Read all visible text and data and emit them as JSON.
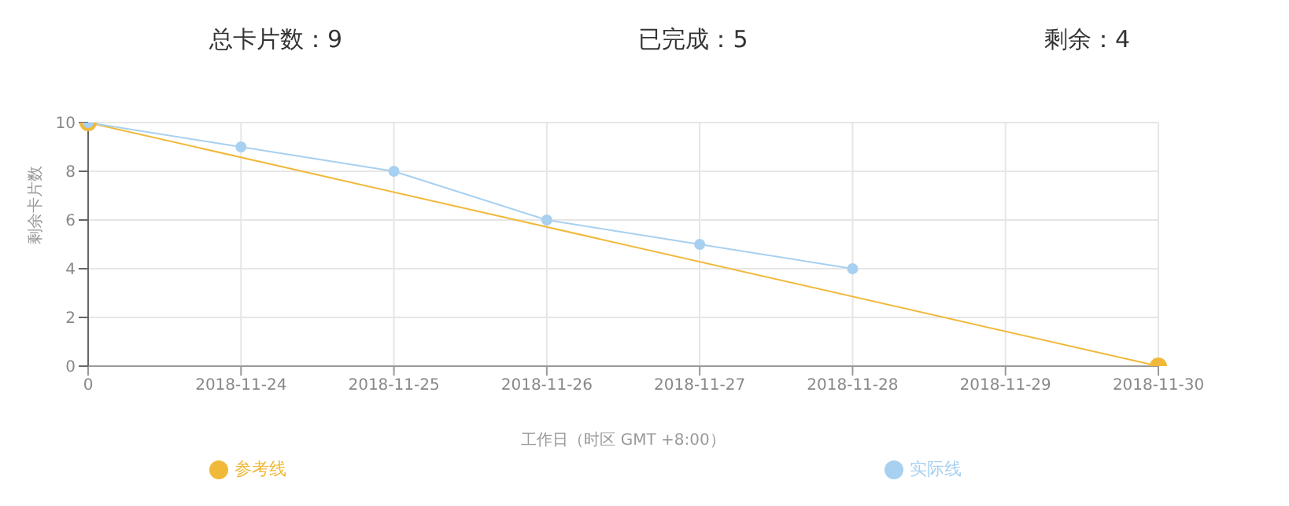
{
  "chart_data": {
    "type": "line",
    "xlabel": "工作日（时区 GMT +8:00）",
    "ylabel": "剩余卡片数",
    "annotations": [
      "总卡片数：9",
      "已完成：5",
      "剩余：4"
    ],
    "categories": [
      "0",
      "2018-11-24",
      "2018-11-25",
      "2018-11-26",
      "2018-11-27",
      "2018-11-28",
      "2018-11-29",
      "2018-11-30"
    ],
    "series": [
      {
        "name": "参考线",
        "color": "#f0b93a",
        "values": [
          10,
          null,
          null,
          null,
          null,
          null,
          null,
          0
        ]
      },
      {
        "name": "实际线",
        "color": "#a8d0f0",
        "values": [
          10,
          9,
          8,
          6,
          5,
          4,
          null,
          null
        ]
      }
    ],
    "ylim": [
      0,
      10
    ],
    "yticks": [
      0,
      2,
      4,
      6,
      8,
      10
    ],
    "grid": true,
    "legend": "bottom",
    "marker": "circle",
    "line_style": "solid"
  }
}
